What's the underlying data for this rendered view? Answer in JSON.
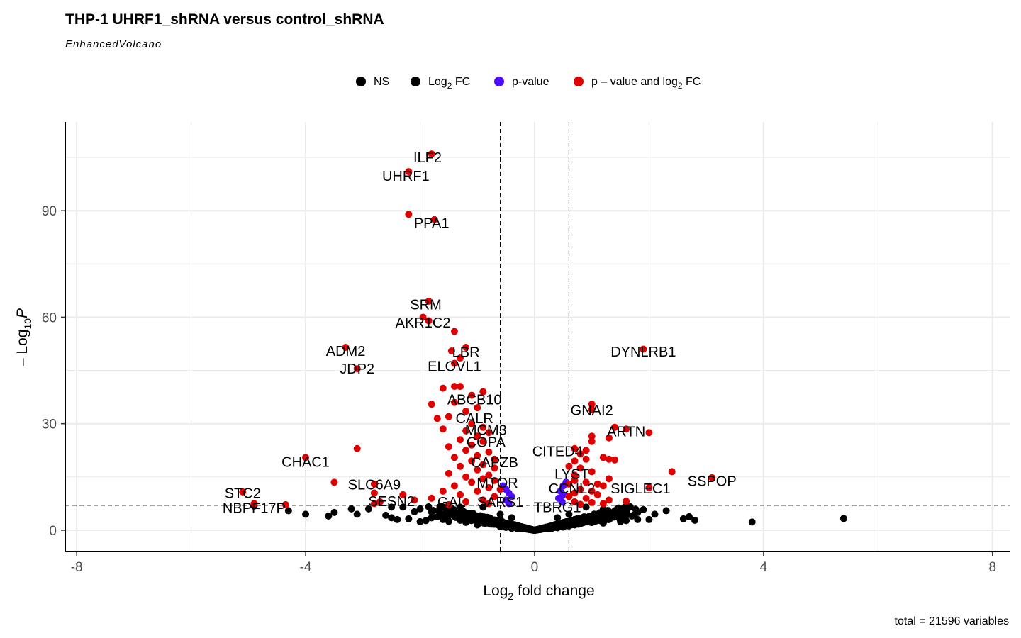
{
  "chart_data": {
    "type": "scatter",
    "title": "THP-1 UHRF1_shRNA versus control_shRNA",
    "subtitle": "EnhancedVolcano",
    "xlabel_base": "Log",
    "xlabel_sub": "2",
    "xlabel_rest": " fold change",
    "ylabel_prefix": "– Log",
    "ylabel_sub": "10",
    "ylabel_var": "P",
    "caption": "total = 21596 variables",
    "xlim": [
      -8.2,
      8.3
    ],
    "ylim": [
      -6,
      115
    ],
    "x_ticks": [
      -8,
      -4,
      0,
      4,
      8
    ],
    "x_tick_labels": [
      "-8",
      "-4",
      "0",
      "4",
      "8"
    ],
    "y_ticks": [
      0,
      30,
      60,
      90
    ],
    "y_tick_labels": [
      "0",
      "30",
      "60",
      "90"
    ],
    "fc_cutoff": 0.6,
    "p_cutoff_neglog10": 7,
    "grid": true,
    "legend_position": "top",
    "legend": [
      {
        "label": "NS",
        "color": "#000000"
      },
      {
        "label_base": "Log",
        "label_sub": "2",
        "label_rest": " FC",
        "color": "#000000"
      },
      {
        "label": "p-value",
        "color": "#4b0cff"
      },
      {
        "label_base": "p – value and log",
        "label_sub": "2",
        "label_rest": " FC",
        "color": "#e00000"
      }
    ],
    "colors": {
      "ns": "#000000",
      "fc": "#000000",
      "p": "#4b0cff",
      "both": "#e00000"
    },
    "series": [
      {
        "category": "NS",
        "points": [
          [
            -4.3,
            5.5
          ],
          [
            -4.0,
            4.5
          ],
          [
            -3.6,
            4.0
          ],
          [
            -3.5,
            5.0
          ],
          [
            -3.1,
            4.5
          ],
          [
            -2.9,
            6.0
          ],
          [
            -2.5,
            6.5
          ],
          [
            -2.5,
            3.5
          ],
          [
            -2.4,
            3.0
          ],
          [
            -2.2,
            3.2
          ],
          [
            -2.1,
            5.2
          ],
          [
            -2.0,
            6.0
          ],
          [
            -1.9,
            2.7
          ],
          [
            -1.8,
            3.5
          ],
          [
            -1.6,
            3.0
          ],
          [
            -1.5,
            5.0
          ],
          [
            -1.4,
            4.0
          ],
          [
            -1.3,
            2.8
          ],
          [
            -1.2,
            4.5
          ],
          [
            -1.1,
            3.2
          ],
          [
            -1.0,
            4.0
          ],
          [
            -0.9,
            3.0
          ],
          [
            -0.8,
            3.5
          ],
          [
            -0.7,
            2.5
          ],
          [
            -0.6,
            3.0
          ],
          [
            -0.5,
            2.0
          ],
          [
            -0.4,
            1.5
          ],
          [
            -0.3,
            1.0
          ],
          [
            -0.2,
            0.6
          ],
          [
            -0.1,
            0.3
          ],
          [
            0.0,
            0.1
          ],
          [
            0.1,
            0.3
          ],
          [
            0.2,
            0.6
          ],
          [
            0.3,
            1.2
          ],
          [
            0.4,
            1.6
          ],
          [
            0.5,
            2.0
          ],
          [
            0.6,
            2.5
          ],
          [
            0.7,
            3.0
          ],
          [
            0.8,
            2.8
          ],
          [
            0.9,
            3.5
          ],
          [
            1.0,
            4.0
          ],
          [
            1.1,
            3.2
          ],
          [
            1.2,
            4.5
          ],
          [
            1.3,
            3.0
          ],
          [
            1.4,
            5.0
          ],
          [
            1.5,
            3.5
          ],
          [
            1.6,
            2.7
          ],
          [
            1.7,
            4.0
          ],
          [
            1.8,
            5.0
          ],
          [
            1.9,
            5.8
          ],
          [
            2.0,
            3.0
          ],
          [
            2.3,
            5.5
          ],
          [
            2.6,
            3.2
          ],
          [
            2.7,
            3.8
          ],
          [
            2.8,
            2.8
          ],
          [
            3.8,
            2.3
          ],
          [
            5.4,
            3.3
          ],
          [
            -1.0,
            1.5
          ],
          [
            -0.8,
            2.0
          ],
          [
            -0.6,
            1.0
          ],
          [
            -0.5,
            0.8
          ],
          [
            -0.4,
            0.5
          ],
          [
            -0.3,
            0.4
          ],
          [
            0.3,
            0.5
          ],
          [
            0.4,
            0.7
          ],
          [
            0.5,
            0.9
          ],
          [
            0.6,
            1.2
          ],
          [
            0.7,
            1.5
          ],
          [
            0.8,
            1.8
          ],
          [
            1.0,
            2.2
          ],
          [
            1.2,
            2.0
          ],
          [
            -1.2,
            2.2
          ],
          [
            -1.5,
            2.5
          ],
          [
            -1.7,
            3.8
          ],
          [
            -2.0,
            2.4
          ],
          [
            1.5,
            2.4
          ],
          [
            1.8,
            3.0
          ],
          [
            2.1,
            4.5
          ],
          [
            -0.6,
            4.5
          ],
          [
            -0.4,
            3.5
          ],
          [
            0.4,
            3.5
          ],
          [
            0.6,
            4.5
          ],
          [
            -2.6,
            4.2
          ],
          [
            -2.3,
            6.5
          ],
          [
            1.2,
            6.0
          ],
          [
            0.9,
            6.5
          ],
          [
            -0.9,
            6.5
          ],
          [
            -1.3,
            6.5
          ],
          [
            -3.2,
            6.0
          ],
          [
            -4.9,
            6.8
          ]
        ]
      },
      {
        "category": "p-value",
        "points": [
          [
            -0.5,
            11.5
          ],
          [
            -0.45,
            10.5
          ],
          [
            -0.4,
            9.5
          ],
          [
            -0.5,
            8.5
          ],
          [
            -0.45,
            7.5
          ],
          [
            -0.55,
            12.5
          ],
          [
            0.45,
            11
          ],
          [
            0.5,
            10
          ],
          [
            0.42,
            9
          ],
          [
            0.48,
            8
          ],
          [
            0.5,
            12.5
          ],
          [
            0.55,
            13.5
          ]
        ]
      },
      {
        "category": "p – value and log2 FC",
        "points": [
          [
            -1.8,
            106
          ],
          [
            -2.2,
            101
          ],
          [
            -2.2,
            89
          ],
          [
            -1.75,
            87.5
          ],
          [
            -1.85,
            64.5
          ],
          [
            -1.95,
            60
          ],
          [
            -1.85,
            59
          ],
          [
            -1.4,
            56
          ],
          [
            -1.45,
            50.5
          ],
          [
            -1.2,
            51.5
          ],
          [
            -1.3,
            48.5
          ],
          [
            -1.4,
            47
          ],
          [
            -3.3,
            51.5
          ],
          [
            -3.1,
            45.5
          ],
          [
            1.9,
            51
          ],
          [
            -1.4,
            40.5
          ],
          [
            -1.6,
            40
          ],
          [
            -1.3,
            40.5
          ],
          [
            -0.9,
            39
          ],
          [
            -1.1,
            38
          ],
          [
            -1.4,
            36
          ],
          [
            -1.8,
            35.5
          ],
          [
            -1.0,
            34.5
          ],
          [
            -1.2,
            33.5
          ],
          [
            -1.5,
            32
          ],
          [
            -1.7,
            31.5
          ],
          [
            -1.1,
            30
          ],
          [
            -0.9,
            29
          ],
          [
            -1.6,
            28.5
          ],
          [
            -1.2,
            28
          ],
          [
            -0.8,
            27.5
          ],
          [
            -1.0,
            26.5
          ],
          [
            -1.3,
            25.5
          ],
          [
            -0.9,
            25
          ],
          [
            -1.1,
            24
          ],
          [
            -1.5,
            23.5
          ],
          [
            -3.1,
            23
          ],
          [
            -1.2,
            22.5
          ],
          [
            -0.8,
            22
          ],
          [
            -1.0,
            21
          ],
          [
            -1.4,
            20.5
          ],
          [
            -4.0,
            20.5
          ],
          [
            -0.7,
            20
          ],
          [
            -1.1,
            19.5
          ],
          [
            -0.9,
            18.5
          ],
          [
            -1.3,
            18
          ],
          [
            -0.7,
            17.5
          ],
          [
            -1.0,
            17
          ],
          [
            -1.5,
            16
          ],
          [
            -0.8,
            15.5
          ],
          [
            -1.2,
            15
          ],
          [
            -0.9,
            14.5
          ],
          [
            -0.7,
            14
          ],
          [
            -1.1,
            13.5
          ],
          [
            -3.5,
            13.5
          ],
          [
            -2.8,
            13
          ],
          [
            -1.4,
            12.5
          ],
          [
            -0.8,
            12
          ],
          [
            -0.6,
            11.5
          ],
          [
            -1.0,
            11
          ],
          [
            -1.6,
            11
          ],
          [
            -2.8,
            10.5
          ],
          [
            -5.1,
            10.8
          ],
          [
            -2.3,
            10
          ],
          [
            -1.3,
            10
          ],
          [
            -0.7,
            9.5
          ],
          [
            -1.8,
            9
          ],
          [
            -2.1,
            8.5
          ],
          [
            -0.9,
            8.5
          ],
          [
            -2.7,
            8
          ],
          [
            -1.2,
            8
          ],
          [
            -2.8,
            7.5
          ],
          [
            -4.9,
            7.5
          ],
          [
            -0.8,
            7.5
          ],
          [
            -4.35,
            7.2
          ],
          [
            -1.5,
            7.2
          ],
          [
            1.0,
            34
          ],
          [
            1.0,
            35.5
          ],
          [
            1.4,
            29
          ],
          [
            1.6,
            28.5
          ],
          [
            2.0,
            27.5
          ],
          [
            1.0,
            26.5
          ],
          [
            1.3,
            26
          ],
          [
            1.0,
            25
          ],
          [
            0.7,
            23
          ],
          [
            0.9,
            22.5
          ],
          [
            0.8,
            21.5
          ],
          [
            1.2,
            20.5
          ],
          [
            1.3,
            20
          ],
          [
            1.4,
            19.8
          ],
          [
            0.9,
            20
          ],
          [
            0.7,
            19.5
          ],
          [
            0.6,
            18
          ],
          [
            0.8,
            17.5
          ],
          [
            1.0,
            16.5
          ],
          [
            2.4,
            16.5
          ],
          [
            0.7,
            15.5
          ],
          [
            3.1,
            14.8
          ],
          [
            1.3,
            14.5
          ],
          [
            0.7,
            14
          ],
          [
            0.9,
            13.5
          ],
          [
            1.1,
            13
          ],
          [
            0.6,
            13
          ],
          [
            1.2,
            12.5
          ],
          [
            2.0,
            12
          ],
          [
            0.8,
            11.5
          ],
          [
            1.0,
            11
          ],
          [
            0.7,
            10.5
          ],
          [
            1.1,
            10
          ],
          [
            0.6,
            9.5
          ],
          [
            0.9,
            9
          ],
          [
            1.3,
            8.5
          ],
          [
            1.6,
            8.2
          ],
          [
            0.7,
            8
          ],
          [
            1.0,
            7.8
          ],
          [
            1.2,
            7.5
          ],
          [
            0.8,
            7.3
          ]
        ]
      }
    ],
    "labels": [
      {
        "text": "ILF2",
        "x": -1.87,
        "y": 105
      },
      {
        "text": "UHRF1",
        "x": -2.25,
        "y": 99.8
      },
      {
        "text": "PPA1",
        "x": -1.8,
        "y": 86.5
      },
      {
        "text": "SRM",
        "x": -1.9,
        "y": 63.6
      },
      {
        "text": "AKR1C2",
        "x": -1.95,
        "y": 58.5
      },
      {
        "text": "ADM2",
        "x": -3.3,
        "y": 50.5
      },
      {
        "text": "JDP2",
        "x": -3.1,
        "y": 45.5
      },
      {
        "text": "LBR",
        "x": -1.2,
        "y": 50.2
      },
      {
        "text": "ELOVL1",
        "x": -1.4,
        "y": 46.2
      },
      {
        "text": "DYNLRB1",
        "x": 1.9,
        "y": 50.3
      },
      {
        "text": "ABCB10",
        "x": -1.05,
        "y": 36.8
      },
      {
        "text": "GNAI2",
        "x": 1.0,
        "y": 33.8
      },
      {
        "text": "CALR",
        "x": -1.05,
        "y": 31.5
      },
      {
        "text": "MCM3",
        "x": -0.85,
        "y": 28.2
      },
      {
        "text": "ARTN",
        "x": 1.6,
        "y": 27.8
      },
      {
        "text": "COPA",
        "x": -0.85,
        "y": 24.8
      },
      {
        "text": "CITED4",
        "x": 0.4,
        "y": 22.3
      },
      {
        "text": "CHAC1",
        "x": -4.0,
        "y": 19.3
      },
      {
        "text": "CAPZB",
        "x": -0.7,
        "y": 19.2
      },
      {
        "text": "LYST",
        "x": 0.65,
        "y": 15.9
      },
      {
        "text": "SSPOP",
        "x": 3.1,
        "y": 13.9
      },
      {
        "text": "MTOR",
        "x": -0.65,
        "y": 13.4
      },
      {
        "text": "SLC6A9",
        "x": -2.8,
        "y": 12.9
      },
      {
        "text": "CCNL2",
        "x": 0.65,
        "y": 11.8
      },
      {
        "text": "SIGLEC1",
        "x": 1.85,
        "y": 11.8
      },
      {
        "text": "STC2",
        "x": -5.1,
        "y": 10.5
      },
      {
        "text": "SESN2",
        "x": -2.5,
        "y": 8.2
      },
      {
        "text": "GAL",
        "x": -1.45,
        "y": 8.0
      },
      {
        "text": "SARS1",
        "x": -0.6,
        "y": 8.0
      },
      {
        "text": "TBRG1",
        "x": 0.4,
        "y": 6.5
      },
      {
        "text": "NBPF17P",
        "x": -4.9,
        "y": 6.3
      }
    ]
  }
}
